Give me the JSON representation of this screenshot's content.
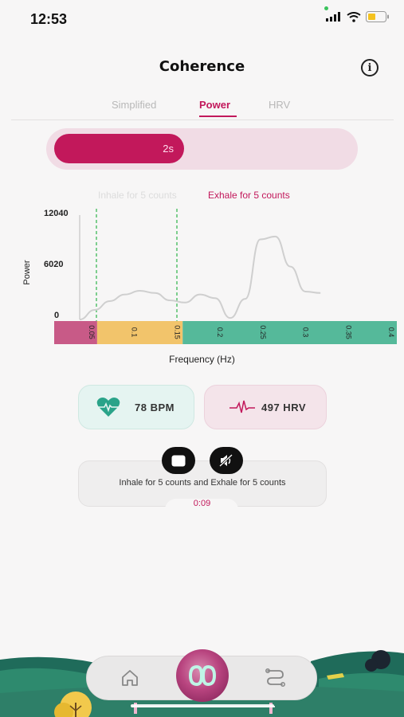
{
  "status_bar": {
    "time": "12:53"
  },
  "header": {
    "title": "Coherence",
    "info_icon": "i"
  },
  "tabs": [
    {
      "label": "Simplified",
      "active": false
    },
    {
      "label": "Power",
      "active": true
    },
    {
      "label": "HRV",
      "active": false
    }
  ],
  "breath_progress": {
    "label": "2s",
    "fraction": 0.42
  },
  "breath_phase": {
    "inhale": "Inhale for 5 counts",
    "exhale": "Exhale for 5 counts"
  },
  "chart_data": {
    "type": "line",
    "ylabel": "Power",
    "xlabel": "Frequency (Hz)",
    "yticks": [
      "12040",
      "6020",
      "0"
    ],
    "ylim": [
      0,
      12040
    ],
    "xlim": [
      0.04,
      0.4
    ],
    "xticks": [
      "0.05",
      "0.1",
      "0.15",
      "0.2",
      "0.25",
      "0.3",
      "0.35",
      "0.4"
    ],
    "coherence_window": [
      0.04,
      0.15
    ],
    "bands": [
      {
        "from": 0.0,
        "to": 0.05,
        "color": "#c85a87"
      },
      {
        "from": 0.05,
        "to": 0.15,
        "color": "#f2c46b"
      },
      {
        "from": 0.15,
        "to": 0.4,
        "color": "#55b99a"
      }
    ],
    "series": [
      {
        "x": [
          0.04,
          0.06,
          0.08,
          0.1,
          0.12,
          0.14,
          0.16,
          0.18,
          0.2,
          0.22,
          0.24,
          0.26,
          0.28,
          0.3,
          0.32,
          0.34,
          0.36
        ],
        "y": [
          0,
          1300,
          2500,
          3400,
          3900,
          3600,
          2600,
          2300,
          3400,
          2900,
          200,
          2800,
          10900,
          11300,
          7200,
          3800,
          3600
        ]
      }
    ]
  },
  "stats": {
    "bpm": "78 BPM",
    "hrv": "497 HRV"
  },
  "guide": {
    "text": "Inhale for 5 counts and Exhale for 5 counts",
    "timer": "0:09"
  },
  "colors": {
    "accent": "#c2185b",
    "teal": "#2aa389"
  }
}
